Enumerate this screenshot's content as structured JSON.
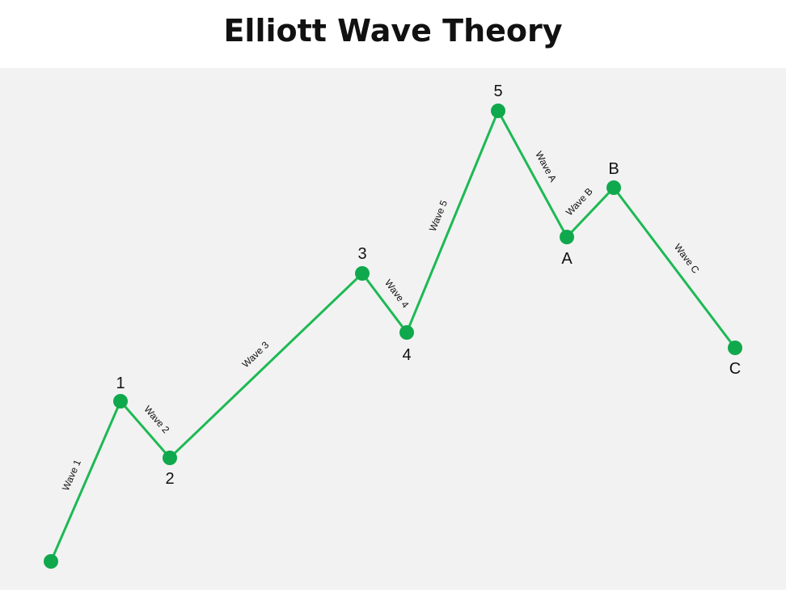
{
  "title": "Elliott Wave Theory",
  "colors": {
    "line": "#1db954",
    "point": "#10a84c",
    "background": "#f2f2f2"
  },
  "points": [
    {
      "id": "start",
      "label": ""
    },
    {
      "id": "p1",
      "label": "1"
    },
    {
      "id": "p2",
      "label": "2"
    },
    {
      "id": "p3",
      "label": "3"
    },
    {
      "id": "p4",
      "label": "4"
    },
    {
      "id": "p5",
      "label": "5"
    },
    {
      "id": "pA",
      "label": "A"
    },
    {
      "id": "pB",
      "label": "B"
    },
    {
      "id": "pC",
      "label": "C"
    }
  ],
  "waves": [
    {
      "id": "w1",
      "label": "Wave 1"
    },
    {
      "id": "w2",
      "label": "Wave 2"
    },
    {
      "id": "w3",
      "label": "Wave 3"
    },
    {
      "id": "w4",
      "label": "Wave 4"
    },
    {
      "id": "w5",
      "label": "Wave 5"
    },
    {
      "id": "wA",
      "label": "Wave A"
    },
    {
      "id": "wB",
      "label": "Wave B"
    },
    {
      "id": "wC",
      "label": "Wave C"
    }
  ]
}
